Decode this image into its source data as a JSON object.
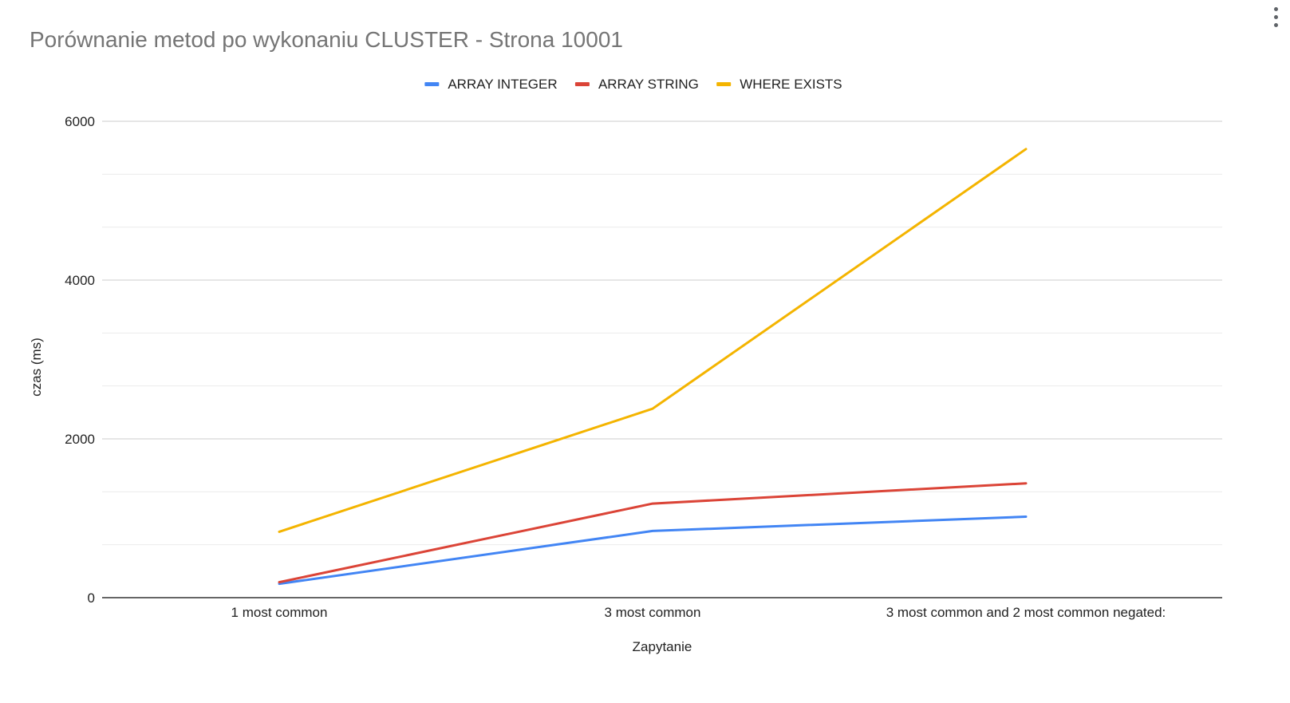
{
  "chart_data": {
    "type": "line",
    "title": "Porównanie metod po wykonaniu CLUSTER - Strona 10001",
    "xlabel": "Zapytanie",
    "ylabel": "czas (ms)",
    "categories": [
      "1 most common",
      "3 most common",
      "3 most common and 2 most common negated:"
    ],
    "ylim": [
      0,
      6000
    ],
    "y_ticks": [
      "0",
      "2000",
      "4000",
      "6000"
    ],
    "grid": true,
    "legend_position": "top",
    "series": [
      {
        "name": "ARRAY INTEGER",
        "color": "#4285F4",
        "values": [
          175,
          840,
          1020
        ]
      },
      {
        "name": "ARRAY STRING",
        "color": "#DB4437",
        "values": [
          195,
          1185,
          1440
        ]
      },
      {
        "name": "WHERE EXISTS",
        "color": "#F4B400",
        "values": [
          830,
          2380,
          5650
        ]
      }
    ]
  },
  "icons": {
    "menu": "more-vert-icon"
  }
}
